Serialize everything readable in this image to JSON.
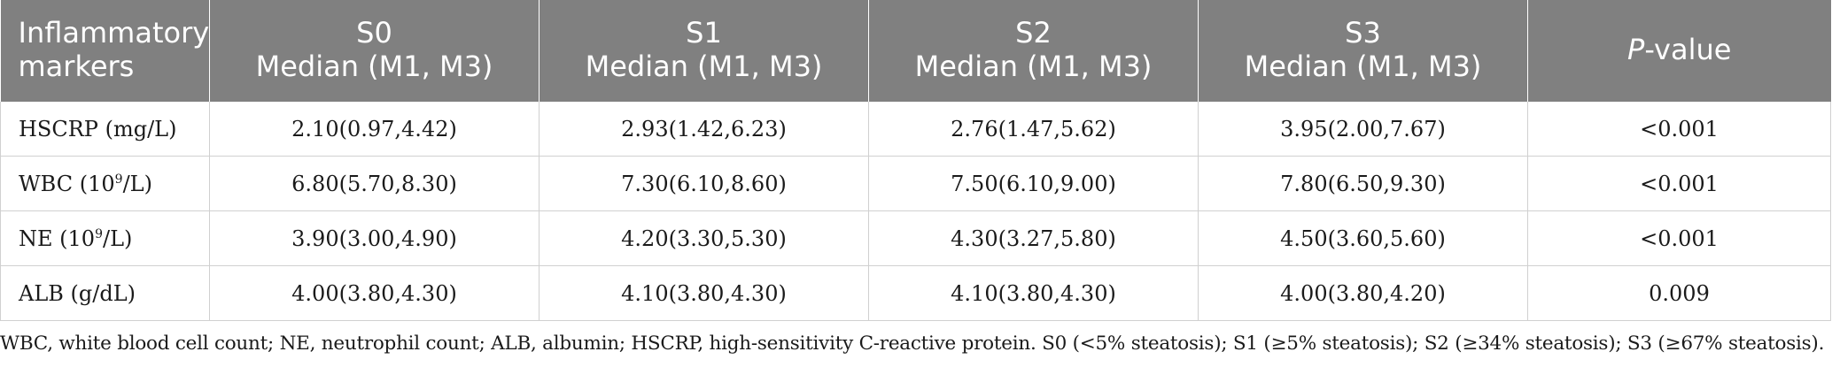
{
  "table": {
    "headers": [
      {
        "line1": "Inflammatory",
        "line2": "markers"
      },
      {
        "line1": "S0",
        "line2": "Median (M1, M3)"
      },
      {
        "line1": "S1",
        "line2": "Median (M1, M3)"
      },
      {
        "line1": "S2",
        "line2": "Median (M1, M3)"
      },
      {
        "line1": "S3",
        "line2": "Median (M1, M3)"
      },
      {
        "italic": "P",
        "rest": "-value"
      }
    ],
    "rows": [
      {
        "marker": "HSCRP (mg/L)",
        "s0": "2.10(0.97,4.42)",
        "s1": "2.93(1.42,6.23)",
        "s2": "2.76(1.47,5.62)",
        "s3": "3.95(2.00,7.67)",
        "p": "<0.001"
      },
      {
        "marker_pre": "WBC (10",
        "marker_sup": "9",
        "marker_post": "/L)",
        "s0": "6.80(5.70,8.30)",
        "s1": "7.30(6.10,8.60)",
        "s2": "7.50(6.10,9.00)",
        "s3": "7.80(6.50,9.30)",
        "p": "<0.001"
      },
      {
        "marker_pre": "NE (10",
        "marker_sup": "9",
        "marker_post": "/L)",
        "s0": "3.90(3.00,4.90)",
        "s1": "4.20(3.30,5.30)",
        "s2": "4.30(3.27,5.80)",
        "s3": "4.50(3.60,5.60)",
        "p": "<0.001"
      },
      {
        "marker": "ALB (g/dL)",
        "s0": "4.00(3.80,4.30)",
        "s1": "4.10(3.80,4.30)",
        "s2": "4.10(3.80,4.30)",
        "s3": "4.00(3.80,4.20)",
        "p": "0.009"
      }
    ]
  },
  "footnote": "WBC, white blood cell count; NE, neutrophil count; ALB, albumin; HSCRP, high-sensitivity C-reactive protein. S0 (<5% steatosis); S1 (≥5% steatosis); S2 (≥34% steatosis); S3 (≥67% steatosis).",
  "colors": {
    "header_bg": "#808080",
    "header_text": "#ffffff",
    "grid": "#d0d0d0"
  }
}
